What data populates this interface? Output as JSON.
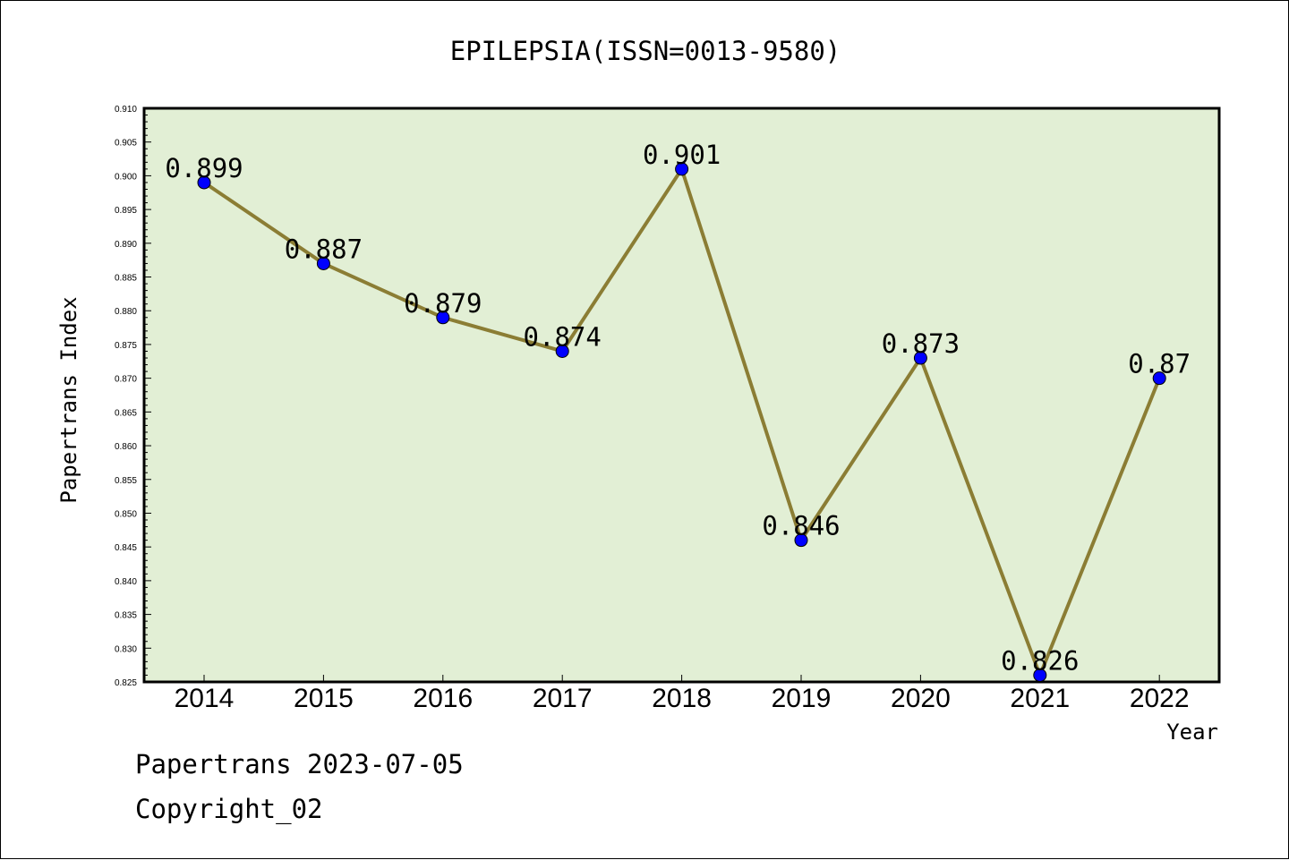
{
  "chart_data": {
    "type": "line",
    "title": "EPILEPSIA(ISSN=0013-9580)",
    "xlabel": "Year",
    "ylabel": "Papertrans Index",
    "categories": [
      "2014",
      "2015",
      "2016",
      "2017",
      "2018",
      "2019",
      "2020",
      "2021",
      "2022"
    ],
    "series": [
      {
        "values": [
          0.899,
          0.887,
          0.879,
          0.874,
          0.901,
          0.846,
          0.873,
          0.826,
          0.87
        ],
        "data_labels": [
          "0.899",
          "0.887",
          "0.879",
          "0.874",
          "0.901",
          "0.846",
          "0.873",
          "0.826",
          "0.87"
        ],
        "line_color": "#8b7d34",
        "marker_color": "#0000ff"
      }
    ],
    "ylim": [
      0.825,
      0.91
    ],
    "yticks": [
      "0.825",
      "0.830",
      "0.835",
      "0.840",
      "0.845",
      "0.850",
      "0.855",
      "0.860",
      "0.865",
      "0.870",
      "0.875",
      "0.880",
      "0.885",
      "0.890",
      "0.895",
      "0.900",
      "0.905",
      "0.910"
    ],
    "grid": false,
    "plot_background": "#e2efd5"
  },
  "footer": {
    "line1": "Papertrans 2023-07-05",
    "line2": "Copyright_02"
  }
}
